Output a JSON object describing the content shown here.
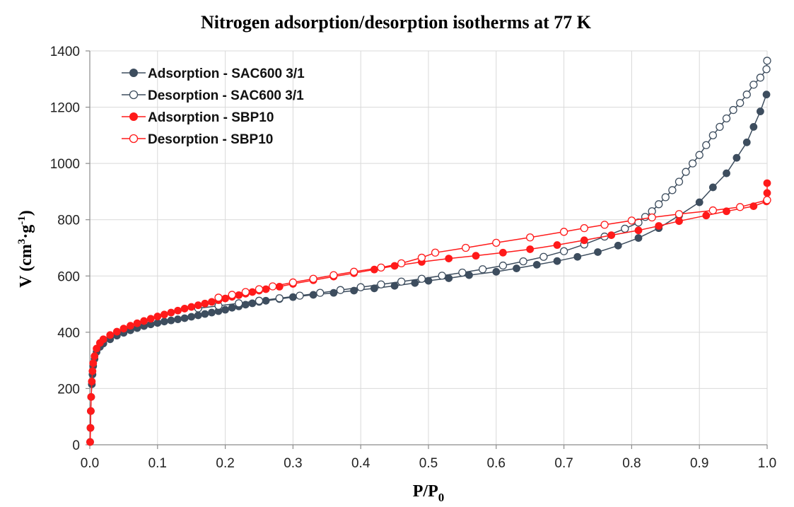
{
  "chart_data": {
    "type": "scatter",
    "title": "Nitrogen adsorption/desorption isotherms at 77 K",
    "xlabel": "P/P",
    "xlabel_sub": "0",
    "ylabel_parts": [
      "V (cm",
      "3",
      "·g",
      "-1",
      ")"
    ],
    "xlim": [
      0,
      1
    ],
    "ylim": [
      0,
      1400
    ],
    "xticks": [
      0,
      0.1,
      0.2,
      0.3,
      0.4,
      0.5,
      0.6,
      0.7,
      0.8,
      0.9,
      1
    ],
    "xtick_labels": [
      "0.0",
      "0.1",
      "0.2",
      "0.3",
      "0.4",
      "0.5",
      "0.6",
      "0.7",
      "0.8",
      "0.9",
      "1.0"
    ],
    "yticks": [
      0,
      200,
      400,
      600,
      800,
      1000,
      1200,
      1400
    ],
    "ytick_labels": [
      "0",
      "200",
      "400",
      "600",
      "800",
      "1000",
      "1200",
      "1400"
    ],
    "grid": true,
    "legend": "top-left",
    "series": [
      {
        "name": "Adsorption - SAC600 3/1",
        "color": "#3d4d5e",
        "marker": "filled",
        "points": [
          [
            0.0005,
            10
          ],
          [
            0.001,
            60
          ],
          [
            0.0015,
            120
          ],
          [
            0.002,
            170
          ],
          [
            0.003,
            215
          ],
          [
            0.004,
            250
          ],
          [
            0.005,
            280
          ],
          [
            0.007,
            305
          ],
          [
            0.01,
            330
          ],
          [
            0.015,
            348
          ],
          [
            0.02,
            360
          ],
          [
            0.03,
            375
          ],
          [
            0.04,
            388
          ],
          [
            0.05,
            398
          ],
          [
            0.06,
            407
          ],
          [
            0.07,
            415
          ],
          [
            0.08,
            422
          ],
          [
            0.09,
            428
          ],
          [
            0.1,
            433
          ],
          [
            0.11,
            438
          ],
          [
            0.12,
            442
          ],
          [
            0.13,
            446
          ],
          [
            0.14,
            450
          ],
          [
            0.15,
            455
          ],
          [
            0.16,
            460
          ],
          [
            0.17,
            465
          ],
          [
            0.18,
            470
          ],
          [
            0.19,
            475
          ],
          [
            0.2,
            480
          ],
          [
            0.21,
            487
          ],
          [
            0.22,
            492
          ],
          [
            0.23,
            498
          ],
          [
            0.24,
            503
          ],
          [
            0.25,
            508
          ],
          [
            0.26,
            512
          ],
          [
            0.28,
            518
          ],
          [
            0.3,
            525
          ],
          [
            0.33,
            533
          ],
          [
            0.36,
            540
          ],
          [
            0.39,
            548
          ],
          [
            0.42,
            556
          ],
          [
            0.45,
            565
          ],
          [
            0.48,
            575
          ],
          [
            0.5,
            583
          ],
          [
            0.53,
            592
          ],
          [
            0.56,
            603
          ],
          [
            0.6,
            615
          ],
          [
            0.63,
            627
          ],
          [
            0.66,
            640
          ],
          [
            0.69,
            653
          ],
          [
            0.72,
            668
          ],
          [
            0.75,
            685
          ],
          [
            0.78,
            708
          ],
          [
            0.81,
            735
          ],
          [
            0.84,
            770
          ],
          [
            0.87,
            815
          ],
          [
            0.9,
            862
          ],
          [
            0.92,
            915
          ],
          [
            0.94,
            965
          ],
          [
            0.955,
            1020
          ],
          [
            0.97,
            1075
          ],
          [
            0.98,
            1130
          ],
          [
            0.99,
            1185
          ],
          [
            0.999,
            1245
          ]
        ]
      },
      {
        "name": "Desorption - SAC600 3/1",
        "color": "#3d4d5e",
        "marker": "open",
        "points": [
          [
            1.0,
            1365
          ],
          [
            0.999,
            1335
          ],
          [
            0.99,
            1305
          ],
          [
            0.98,
            1280
          ],
          [
            0.97,
            1245
          ],
          [
            0.96,
            1215
          ],
          [
            0.95,
            1190
          ],
          [
            0.94,
            1160
          ],
          [
            0.93,
            1130
          ],
          [
            0.92,
            1100
          ],
          [
            0.91,
            1065
          ],
          [
            0.9,
            1030
          ],
          [
            0.89,
            1000
          ],
          [
            0.88,
            970
          ],
          [
            0.87,
            935
          ],
          [
            0.86,
            905
          ],
          [
            0.85,
            880
          ],
          [
            0.84,
            855
          ],
          [
            0.83,
            830
          ],
          [
            0.82,
            810
          ],
          [
            0.81,
            790
          ],
          [
            0.79,
            768
          ],
          [
            0.76,
            740
          ],
          [
            0.73,
            712
          ],
          [
            0.7,
            688
          ],
          [
            0.67,
            668
          ],
          [
            0.64,
            652
          ],
          [
            0.61,
            637
          ],
          [
            0.58,
            624
          ],
          [
            0.55,
            612
          ],
          [
            0.52,
            601
          ],
          [
            0.49,
            590
          ],
          [
            0.46,
            580
          ],
          [
            0.43,
            570
          ],
          [
            0.4,
            560
          ],
          [
            0.37,
            550
          ],
          [
            0.34,
            540
          ],
          [
            0.31,
            530
          ],
          [
            0.28,
            521
          ],
          [
            0.25,
            512
          ],
          [
            0.22,
            503
          ],
          [
            0.19,
            494
          ],
          [
            0.16,
            485
          ]
        ]
      },
      {
        "name": "Adsorption - SBP10",
        "color": "#ff1a1a",
        "marker": "filled",
        "points": [
          [
            0.0005,
            10
          ],
          [
            0.001,
            60
          ],
          [
            0.0015,
            120
          ],
          [
            0.002,
            170
          ],
          [
            0.003,
            225
          ],
          [
            0.004,
            262
          ],
          [
            0.005,
            290
          ],
          [
            0.007,
            315
          ],
          [
            0.01,
            342
          ],
          [
            0.015,
            362
          ],
          [
            0.02,
            375
          ],
          [
            0.03,
            390
          ],
          [
            0.04,
            402
          ],
          [
            0.05,
            413
          ],
          [
            0.06,
            423
          ],
          [
            0.07,
            432
          ],
          [
            0.08,
            440
          ],
          [
            0.09,
            448
          ],
          [
            0.1,
            456
          ],
          [
            0.11,
            463
          ],
          [
            0.12,
            470
          ],
          [
            0.13,
            477
          ],
          [
            0.14,
            484
          ],
          [
            0.15,
            490
          ],
          [
            0.16,
            496
          ],
          [
            0.17,
            502
          ],
          [
            0.18,
            508
          ],
          [
            0.19,
            514
          ],
          [
            0.2,
            520
          ],
          [
            0.21,
            526
          ],
          [
            0.22,
            532
          ],
          [
            0.23,
            537
          ],
          [
            0.24,
            543
          ],
          [
            0.25,
            548
          ],
          [
            0.26,
            553
          ],
          [
            0.28,
            562
          ],
          [
            0.3,
            572
          ],
          [
            0.33,
            585
          ],
          [
            0.36,
            598
          ],
          [
            0.39,
            610
          ],
          [
            0.42,
            623
          ],
          [
            0.45,
            636
          ],
          [
            0.49,
            650
          ],
          [
            0.53,
            662
          ],
          [
            0.57,
            672
          ],
          [
            0.61,
            683
          ],
          [
            0.65,
            695
          ],
          [
            0.69,
            710
          ],
          [
            0.73,
            727
          ],
          [
            0.77,
            745
          ],
          [
            0.81,
            762
          ],
          [
            0.84,
            778
          ],
          [
            0.87,
            795
          ],
          [
            0.91,
            815
          ],
          [
            0.94,
            830
          ],
          [
            0.98,
            848
          ],
          [
            0.999,
            865
          ],
          [
            1.0,
            895
          ],
          [
            1.0,
            930
          ]
        ]
      },
      {
        "name": "Desorption - SBP10",
        "color": "#ff1a1a",
        "marker": "open",
        "points": [
          [
            1.0,
            870
          ],
          [
            0.96,
            845
          ],
          [
            0.92,
            833
          ],
          [
            0.87,
            820
          ],
          [
            0.83,
            808
          ],
          [
            0.8,
            797
          ],
          [
            0.76,
            782
          ],
          [
            0.73,
            770
          ],
          [
            0.7,
            757
          ],
          [
            0.65,
            737
          ],
          [
            0.6,
            718
          ],
          [
            0.555,
            700
          ],
          [
            0.51,
            683
          ],
          [
            0.49,
            665
          ],
          [
            0.46,
            645
          ],
          [
            0.43,
            630
          ],
          [
            0.39,
            615
          ],
          [
            0.36,
            603
          ],
          [
            0.33,
            590
          ],
          [
            0.3,
            577
          ],
          [
            0.27,
            563
          ],
          [
            0.25,
            553
          ],
          [
            0.23,
            543
          ],
          [
            0.21,
            533
          ],
          [
            0.19,
            523
          ]
        ]
      }
    ]
  }
}
